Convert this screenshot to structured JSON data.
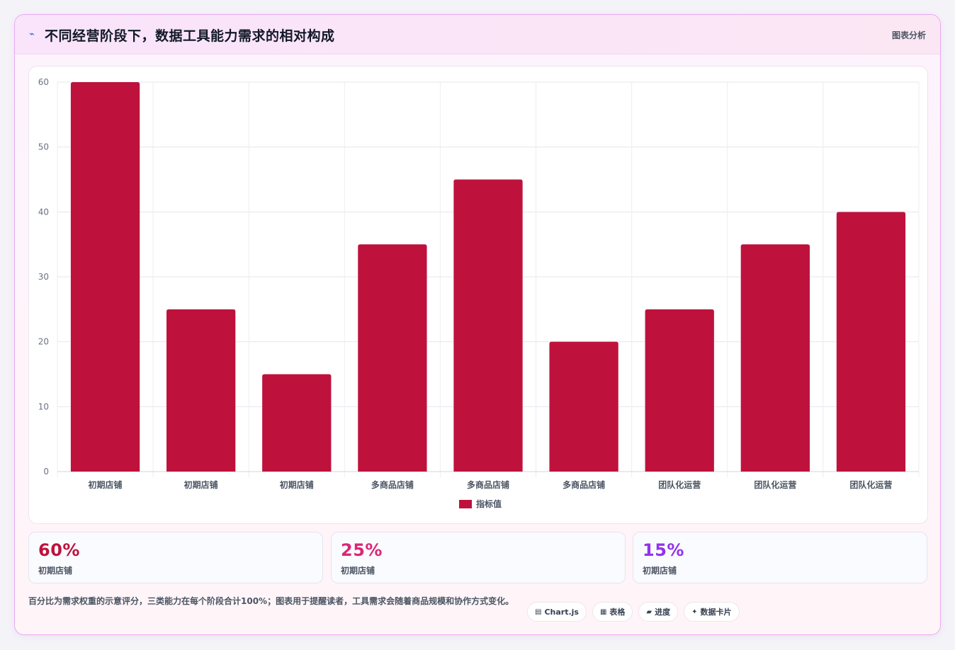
{
  "header": {
    "logo_icon": "chart-spark-icon",
    "title": "不同经营阶段下，数据工具能力需求的相对构成",
    "meta": "图表分析"
  },
  "chart_data": {
    "type": "bar",
    "categories": [
      "初期店铺",
      "初期店铺",
      "初期店铺",
      "多商品店铺",
      "多商品店铺",
      "多商品店铺",
      "团队化运营",
      "团队化运营",
      "团队化运营"
    ],
    "series": [
      {
        "name": "指标值",
        "values": [
          60,
          25,
          15,
          35,
          45,
          20,
          25,
          35,
          40
        ]
      }
    ],
    "ylim": [
      0,
      60
    ],
    "yticks": [
      "0",
      "10",
      "20",
      "30",
      "40",
      "50",
      "60"
    ],
    "grid": true,
    "legend": "bottom",
    "bar_color": "#be123c"
  },
  "stats": [
    {
      "value": "60%",
      "label": "初期店铺",
      "color": "#be123c"
    },
    {
      "value": "25%",
      "label": "初期店铺",
      "color": "#db2777"
    },
    {
      "value": "15%",
      "label": "初期店铺",
      "color": "#9333ea"
    }
  ],
  "note": "百分比为需求权重的示意评分，三类能力在每个阶段合计100%；图表用于提醒读者，工具需求会随着商品规模和协作方式变化。",
  "chips": [
    {
      "icon": "chart-icon",
      "glyph": "▤",
      "label": "Chart.js"
    },
    {
      "icon": "table-icon",
      "glyph": "▦",
      "label": "表格"
    },
    {
      "icon": "progress-icon",
      "glyph": "▰",
      "label": "进度"
    },
    {
      "icon": "sparkle-icon",
      "glyph": "✦",
      "label": "数据卡片"
    }
  ]
}
